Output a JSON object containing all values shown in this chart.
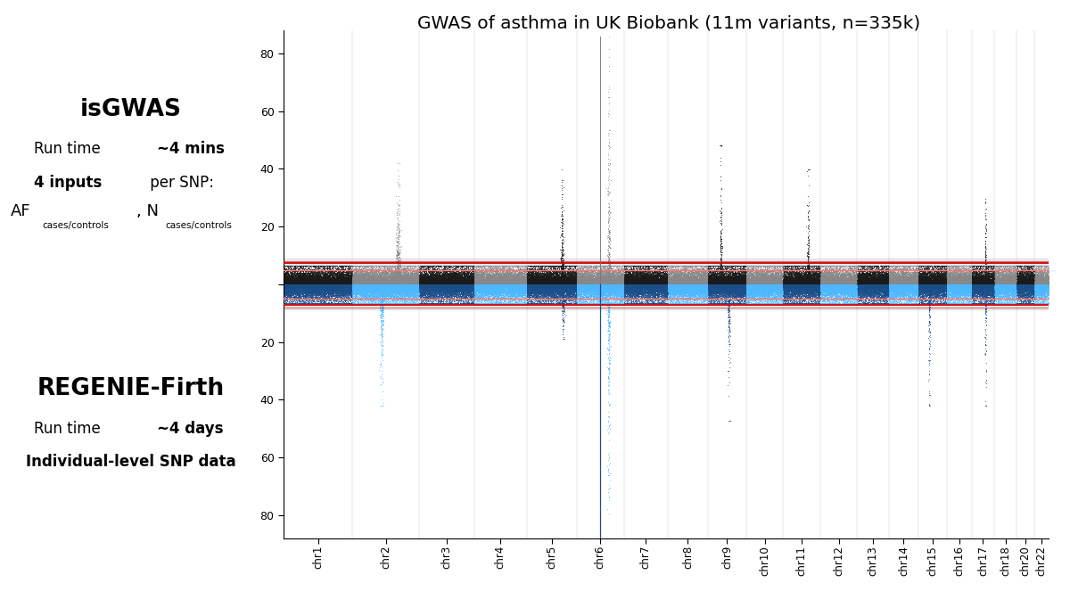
{
  "title": "GWAS of asthma in UK Biobank (11m variants, n=335k)",
  "chromosomes": [
    "chr1",
    "chr2",
    "chr3",
    "chr4",
    "chr5",
    "chr6",
    "chr7",
    "chr8",
    "chr9",
    "chr10",
    "chr11",
    "chr12",
    "chr13",
    "chr14",
    "chr15",
    "chr16",
    "chr17",
    "chr18",
    "chr20",
    "chr22"
  ],
  "chr_sizes": [
    248956422,
    242193529,
    198295559,
    190214555,
    181538259,
    170805979,
    159345973,
    145138636,
    138394717,
    133797422,
    135086622,
    133275309,
    114364328,
    107043718,
    101991189,
    90338345,
    83257441,
    80373285,
    64444167,
    50818468
  ],
  "y_max": 88,
  "sig_threshold": 7.3,
  "sug_threshold": 5.0,
  "sig_line2": 8.1,
  "background_color": "#ffffff",
  "upper_color_odd": "#1a1a1a",
  "upper_color_even": "#888888",
  "lower_color_odd": "#1a4f8a",
  "lower_color_even": "#4db8ff",
  "sig_line_color": "#cc0000",
  "sug_line_color": "#ff7777",
  "band_color": "#c8c8c8",
  "notable_peaks_upper": {
    "chr2": 40,
    "chr5": 39,
    "chr6": 85,
    "chr9": 46,
    "chr11": 38,
    "chr17": 40
  },
  "notable_peaks_lower": {
    "chr2": 40,
    "chr5": 18,
    "chr6": 88,
    "chr9": 45,
    "chr15": 40,
    "chr17": 40
  },
  "isGWAS_title": "isGWAS",
  "regenie_title": "REGENIE-Firth"
}
